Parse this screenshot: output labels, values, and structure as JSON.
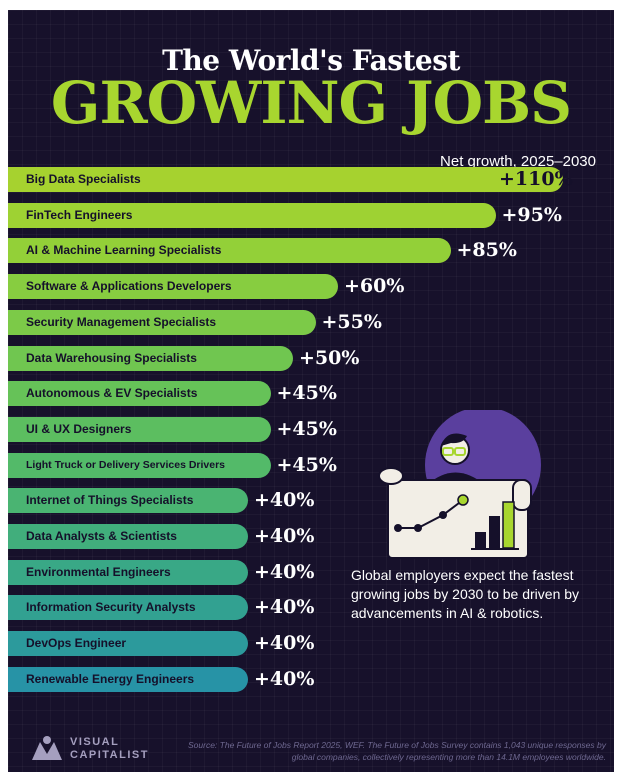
{
  "header": {
    "title_line1": "The World's Fastest",
    "title_line2": "GROWING JOBS",
    "subtitle": "Net growth, 2025–2030"
  },
  "chart_data": {
    "type": "bar",
    "orientation": "horizontal",
    "title": "The World's Fastest Growing Jobs",
    "subtitle": "Net growth, 2025–2030",
    "unit": "%",
    "categories": [
      "Big Data Specialists",
      "FinTech Engineers",
      "AI & Machine Learning Specialists",
      "Software & Applications Developers",
      "Security Management Specialists",
      "Data Warehousing Specialists",
      "Autonomous & EV Specialists",
      "UI & UX Designers",
      "Light Truck or Delivery Services Drivers",
      "Internet of Things Specialists",
      "Data Analysts & Scientists",
      "Environmental Engineers",
      "Information Security Analysts",
      "DevOps Engineer",
      "Renewable Energy Engineers"
    ],
    "values": [
      110,
      95,
      85,
      60,
      55,
      50,
      45,
      45,
      45,
      40,
      40,
      40,
      40,
      40,
      40
    ],
    "value_labels": [
      "+110%",
      "+95%",
      "+85%",
      "+60%",
      "+55%",
      "+50%",
      "+45%",
      "+45%",
      "+45%",
      "+40%",
      "+40%",
      "+40%",
      "+40%",
      "+40%",
      "+40%"
    ],
    "colors": [
      "#a6d22f",
      "#9ed233",
      "#93d038",
      "#87cd40",
      "#7cca48",
      "#70c650",
      "#66c258",
      "#5cbe60",
      "#53ba69",
      "#4ab472",
      "#41ae7c",
      "#39a886",
      "#32a191",
      "#2c9a9c",
      "#2793a6"
    ]
  },
  "annotation": "Global employers expect the fastest growing jobs by 2030 to be driven by advancements in AI & robotics.",
  "footer": {
    "logo_line1": "VISUAL",
    "logo_line2": "CAPITALIST",
    "source": "Source: The Future of Jobs Report 2025, WEF. The Future of Jobs Survey contains 1,043 unique responses by global companies, collectively representing more than 14.1M employees worldwide."
  },
  "colors": {
    "background": "#17112b",
    "accent": "#a8d62f",
    "text": "#ffffff"
  }
}
